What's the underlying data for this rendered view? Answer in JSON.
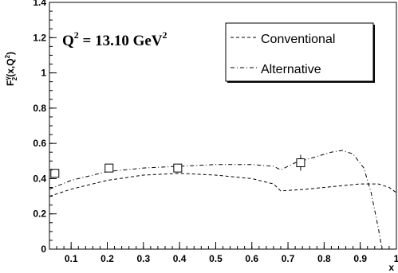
{
  "chart_data": {
    "type": "line",
    "title": "",
    "annotation": {
      "text": "Q",
      "sup1": "2",
      "middle": " = 13.10 GeV",
      "sup2": "2"
    },
    "xlabel": "x",
    "ylabel": {
      "prefix": "F",
      "sub_sup": "γ",
      "sup": "2",
      "suffix": "(x,Q",
      "close": ")"
    },
    "xlim": [
      0.04,
      1.0
    ],
    "ylim": [
      0,
      1.4
    ],
    "x_ticks": [
      0.1,
      0.2,
      0.3,
      0.4,
      0.5,
      0.6,
      0.7,
      0.8,
      0.9,
      1
    ],
    "x_tick_labels": [
      "0.1",
      "0.2",
      "0.3",
      "0.4",
      "0.5",
      "0.6",
      "0.7",
      "0.8",
      "0.9",
      "1"
    ],
    "y_ticks": [
      0,
      0.2,
      0.4,
      0.6,
      0.8,
      1,
      1.2,
      1.4
    ],
    "y_tick_labels": [
      "0",
      "0.2",
      "0.4",
      "0.6",
      "0.8",
      "1",
      "1.2",
      "1.4"
    ],
    "legend_position": "top-right",
    "series": [
      {
        "name": "Conventional",
        "style": "dashed",
        "x": [
          0.04,
          0.1,
          0.2,
          0.3,
          0.4,
          0.5,
          0.6,
          0.66,
          0.68,
          0.75,
          0.8,
          0.85,
          0.9,
          0.95,
          0.98,
          1.0
        ],
        "y": [
          0.3,
          0.34,
          0.39,
          0.42,
          0.43,
          0.42,
          0.4,
          0.37,
          0.33,
          0.34,
          0.35,
          0.36,
          0.37,
          0.37,
          0.35,
          0.32
        ]
      },
      {
        "name": "Alternative",
        "style": "dash-dot",
        "x": [
          0.04,
          0.1,
          0.2,
          0.3,
          0.4,
          0.5,
          0.6,
          0.66,
          0.68,
          0.72,
          0.77,
          0.82,
          0.85,
          0.88,
          0.91,
          0.93,
          0.95,
          0.96
        ],
        "y": [
          0.34,
          0.39,
          0.44,
          0.46,
          0.47,
          0.48,
          0.48,
          0.47,
          0.45,
          0.49,
          0.52,
          0.55,
          0.56,
          0.54,
          0.46,
          0.32,
          0.12,
          0.0
        ]
      }
    ],
    "points": {
      "marker": "open-square",
      "x": [
        0.055,
        0.205,
        0.395,
        0.735
      ],
      "y": [
        0.43,
        0.46,
        0.46,
        0.49
      ],
      "err": [
        0.015,
        0.02,
        0.02,
        0.045
      ]
    }
  }
}
